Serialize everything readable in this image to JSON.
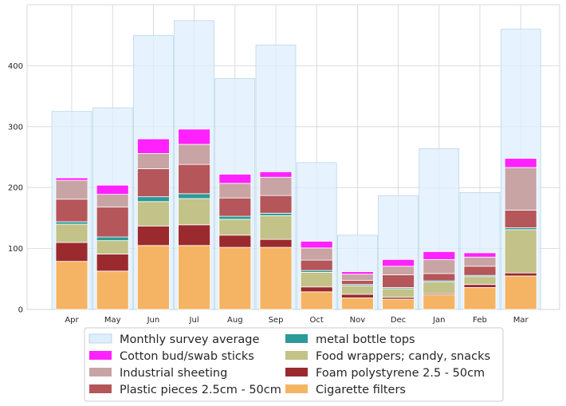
{
  "chart_data": {
    "type": "bar",
    "stacked": true,
    "categories": [
      "Apr",
      "May",
      "Jun",
      "Jul",
      "Aug",
      "Sep",
      "Oct",
      "Nov",
      "Dec",
      "Jan",
      "Feb",
      "Mar"
    ],
    "ylim": [
      0,
      500
    ],
    "yticks": [
      0,
      100,
      200,
      300,
      400
    ],
    "grid": true,
    "legend_position": "bottom-center",
    "background_series": {
      "name": "Monthly survey average",
      "color": "#ddeefc",
      "values": [
        325,
        331,
        450,
        474,
        379,
        434,
        241,
        122,
        187,
        264,
        192,
        460
      ]
    },
    "series": [
      {
        "name": "Cigarette filters",
        "color": "#f5b463",
        "values": [
          79,
          63,
          105,
          105,
          102,
          102,
          29,
          19,
          17,
          24,
          36,
          55
        ]
      },
      {
        "name": "Foam polystyrene  2.5 - 50cm",
        "color": "#9b2a2f",
        "values": [
          31,
          28,
          32,
          34,
          20,
          13,
          8,
          6,
          3,
          2,
          5,
          5
        ]
      },
      {
        "name": "Food wrappers; candy, snacks",
        "color": "#c2c289",
        "values": [
          30,
          22,
          40,
          43,
          26,
          39,
          24,
          14,
          14,
          19,
          13,
          71
        ]
      },
      {
        "name": "metal bottle tops",
        "color": "#2c9a99",
        "values": [
          4,
          6,
          8,
          8,
          5,
          4,
          3,
          2,
          2,
          2,
          2,
          3
        ]
      },
      {
        "name": "Plastic pieces 2.5cm - 50cm",
        "color": "#b5565a",
        "values": [
          37,
          49,
          46,
          48,
          30,
          29,
          17,
          7,
          21,
          12,
          15,
          29
        ]
      },
      {
        "name": "Industrial sheeting",
        "color": "#c8a4a4",
        "values": [
          31,
          21,
          25,
          33,
          24,
          30,
          20,
          10,
          14,
          23,
          15,
          70
        ]
      },
      {
        "name": "Cotton bud/swab sticks",
        "color": "#ff22ff",
        "values": [
          4,
          15,
          24,
          25,
          15,
          9,
          11,
          4,
          11,
          13,
          7,
          15
        ]
      }
    ]
  },
  "legend": {
    "items": [
      "Monthly survey average",
      "metal bottle tops",
      "Cotton bud/swab sticks",
      "Food wrappers; candy, snacks",
      "Industrial sheeting",
      "Foam polystyrene  2.5 - 50cm",
      "Plastic pieces 2.5cm - 50cm",
      "Cigarette filters"
    ]
  }
}
